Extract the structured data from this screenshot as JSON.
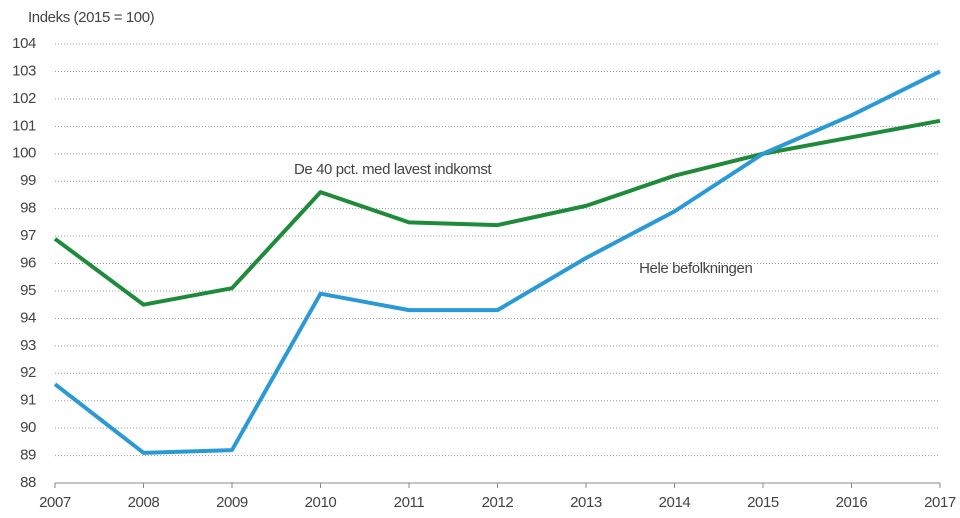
{
  "chart_data": {
    "type": "line",
    "y_axis_label": "Indeks (2015 = 100)",
    "x": [
      2007,
      2008,
      2009,
      2010,
      2011,
      2012,
      2013,
      2014,
      2015,
      2016,
      2017
    ],
    "series": [
      {
        "name": "De  40 pct. med lavest indkomst",
        "color": "#1e8b3a",
        "values": [
          96.9,
          94.5,
          95.1,
          98.6,
          97.5,
          97.4,
          98.1,
          99.2,
          100,
          100.6,
          101.2
        ]
      },
      {
        "name": "Hele befolkningen",
        "color": "#2a9ad6",
        "values": [
          91.6,
          89.1,
          89.2,
          94.9,
          94.3,
          94.3,
          96.2,
          97.9,
          100,
          101.4,
          103.0
        ]
      }
    ],
    "xlim": [
      2007,
      2017
    ],
    "xticks": [
      2007,
      2008,
      2009,
      2010,
      2011,
      2012,
      2013,
      2014,
      2015,
      2016,
      2017
    ],
    "ylim": [
      88,
      104
    ],
    "yticks": [
      88,
      89,
      90,
      91,
      92,
      93,
      94,
      95,
      96,
      97,
      98,
      99,
      100,
      101,
      102,
      103,
      104
    ],
    "grid": true
  }
}
